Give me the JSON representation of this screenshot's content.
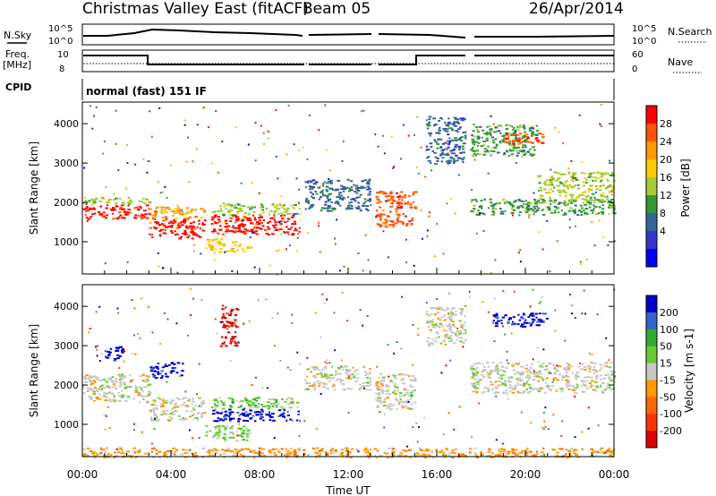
{
  "header": {
    "title": "Christmas Valley East (fitACF)",
    "beam": "Beam 05",
    "date": "26/Apr/2014"
  },
  "strips": {
    "nsky_label": "N.Sky",
    "nsearch_label": "N.Search",
    "nsky_ticks": [
      "10^5",
      "10^0"
    ],
    "freq_label_1": "Freq.",
    "freq_label_2": "[MHz]",
    "freq_ticks": [
      "10",
      "8"
    ],
    "nave_label": "Nave",
    "nave_ticks": [
      "60",
      "0"
    ],
    "cpid_label": "CPID",
    "cpid_text": "normal (fast) 151 IF"
  },
  "chart_data": [
    {
      "type": "heatmap",
      "panel": "power",
      "xlabel": "Time UT",
      "ylabel": "Slant Range [km]",
      "x_ticks": [
        "00:00",
        "04:00",
        "08:00",
        "12:00",
        "16:00",
        "20:00",
        "00:00"
      ],
      "xlim_hours": [
        0,
        24
      ],
      "y_ticks": [
        1000,
        2000,
        3000,
        4000
      ],
      "ylim": [
        180,
        4550
      ],
      "colorbar_label": "Power [dB]",
      "colorbar_ticks": [
        "28",
        "24",
        "20",
        "16",
        "12",
        "8",
        "4"
      ],
      "colorbar_colors": [
        "#ff0000",
        "#ff5500",
        "#ff9900",
        "#ffcc00",
        "#a7cc33",
        "#339933",
        "#336699",
        "#3333cc",
        "#0000ff"
      ],
      "bands": [
        {
          "t0": 0.0,
          "t1": 3.0,
          "r0": 1600,
          "r1": 1950,
          "c": 0
        },
        {
          "t0": 0.0,
          "t1": 3.0,
          "r0": 1950,
          "r1": 2150,
          "c": 4
        },
        {
          "t0": 3.0,
          "t1": 5.5,
          "r0": 1100,
          "r1": 1600,
          "c": 0
        },
        {
          "t0": 3.0,
          "t1": 5.5,
          "r0": 1600,
          "r1": 1900,
          "c": 2
        },
        {
          "t0": 5.8,
          "t1": 9.8,
          "r0": 1200,
          "r1": 1700,
          "c": 0
        },
        {
          "t0": 5.8,
          "t1": 9.8,
          "r0": 1700,
          "r1": 2000,
          "c": 4
        },
        {
          "t0": 5.5,
          "t1": 7.5,
          "r0": 750,
          "r1": 1100,
          "c": 3
        },
        {
          "t0": 10.0,
          "t1": 13.0,
          "r0": 1800,
          "r1": 2600,
          "c": 6
        },
        {
          "t0": 13.2,
          "t1": 15.0,
          "r0": 1400,
          "r1": 2300,
          "c": 1
        },
        {
          "t0": 15.5,
          "t1": 17.3,
          "r0": 3000,
          "r1": 4200,
          "c": 6
        },
        {
          "t0": 17.5,
          "t1": 24.0,
          "r0": 1700,
          "r1": 2100,
          "c": 5
        },
        {
          "t0": 17.5,
          "t1": 20.5,
          "r0": 3200,
          "r1": 4000,
          "c": 5
        },
        {
          "t0": 19.0,
          "t1": 20.8,
          "r0": 3500,
          "r1": 3800,
          "c": 1
        },
        {
          "t0": 20.5,
          "t1": 24.0,
          "r0": 2000,
          "r1": 2800,
          "c": 4
        }
      ]
    },
    {
      "type": "heatmap",
      "panel": "velocity",
      "xlabel": "Time UT",
      "ylabel": "Slant Range [km]",
      "x_ticks": [
        "00:00",
        "04:00",
        "08:00",
        "12:00",
        "16:00",
        "20:00",
        "00:00"
      ],
      "xlim_hours": [
        0,
        24
      ],
      "y_ticks": [
        1000,
        2000,
        3000,
        4000
      ],
      "ylim": [
        180,
        4550
      ],
      "colorbar_label": "Velocity [m s-1]",
      "colorbar_ticks": [
        "200",
        "100",
        "50",
        "15",
        "-15",
        "-50",
        "-100",
        "-200"
      ],
      "colorbar_colors": [
        "#0000cc",
        "#3366cc",
        "#33aa33",
        "#66cc33",
        "#c8c8c8",
        "#ff9900",
        "#ff6600",
        "#ff3300",
        "#dd0000"
      ],
      "bands": [
        {
          "t0": 0.0,
          "t1": 3.0,
          "r0": 1600,
          "r1": 2300,
          "c": 4
        },
        {
          "t0": 1.0,
          "t1": 1.8,
          "r0": 2600,
          "r1": 3000,
          "c": 0
        },
        {
          "t0": 3.0,
          "t1": 5.5,
          "r0": 1100,
          "r1": 1700,
          "c": 4
        },
        {
          "t0": 3.0,
          "t1": 4.5,
          "r0": 2200,
          "r1": 2600,
          "c": 0
        },
        {
          "t0": 5.8,
          "t1": 9.8,
          "r0": 1400,
          "r1": 1700,
          "c": 3
        },
        {
          "t0": 5.8,
          "t1": 9.8,
          "r0": 1100,
          "r1": 1400,
          "c": 0
        },
        {
          "t0": 5.5,
          "t1": 7.5,
          "r0": 600,
          "r1": 1000,
          "c": 3
        },
        {
          "t0": 6.2,
          "t1": 7.0,
          "r0": 3000,
          "r1": 4000,
          "c": 8
        },
        {
          "t0": 10.0,
          "t1": 13.0,
          "r0": 1900,
          "r1": 2500,
          "c": 4
        },
        {
          "t0": 13.2,
          "t1": 15.0,
          "r0": 1400,
          "r1": 2300,
          "c": 4
        },
        {
          "t0": 15.5,
          "t1": 17.3,
          "r0": 3000,
          "r1": 4000,
          "c": 4
        },
        {
          "t0": 17.5,
          "t1": 24.0,
          "r0": 1800,
          "r1": 2600,
          "c": 4
        },
        {
          "t0": 18.5,
          "t1": 21.0,
          "r0": 3500,
          "r1": 3850,
          "c": 0
        },
        {
          "t0": 0.0,
          "t1": 24.0,
          "r0": 180,
          "r1": 420,
          "c": 5
        }
      ]
    }
  ]
}
